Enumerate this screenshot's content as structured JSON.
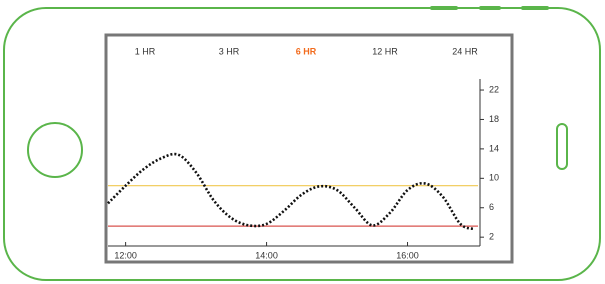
{
  "tabs": [
    "1 HR",
    "3 HR",
    "6 HR",
    "12 HR",
    "24 HR"
  ],
  "active_tab": 2,
  "active_color": "#f26b1d",
  "chart_data": {
    "type": "line",
    "x": [
      11.75,
      12.0,
      12.25,
      12.5,
      12.75,
      13.0,
      13.25,
      13.5,
      13.75,
      14.0,
      14.25,
      14.5,
      14.75,
      15.0,
      15.25,
      15.5,
      15.75,
      16.0,
      16.25,
      16.5,
      16.75,
      16.95
    ],
    "series": [
      {
        "color": "#111111",
        "values": [
          6.6,
          9.0,
          11.2,
          12.7,
          13.2,
          10.8,
          7.0,
          4.6,
          3.6,
          3.8,
          5.6,
          7.8,
          8.9,
          8.4,
          6.0,
          3.6,
          5.3,
          8.4,
          9.3,
          7.5,
          3.8,
          3.1
        ]
      }
    ],
    "reference_lines": [
      {
        "value": 9,
        "color": "#f0c850"
      },
      {
        "value": 3.5,
        "color": "#d9534f"
      }
    ],
    "xlim": [
      11.75,
      17
    ],
    "ylim": [
      0.8,
      23.5
    ],
    "xticks": [
      {
        "value": 12,
        "label": "12:00"
      },
      {
        "value": 14,
        "label": "14:00"
      },
      {
        "value": 16,
        "label": "16:00"
      }
    ],
    "yticks": [
      2,
      6,
      10,
      14,
      18,
      22
    ]
  }
}
